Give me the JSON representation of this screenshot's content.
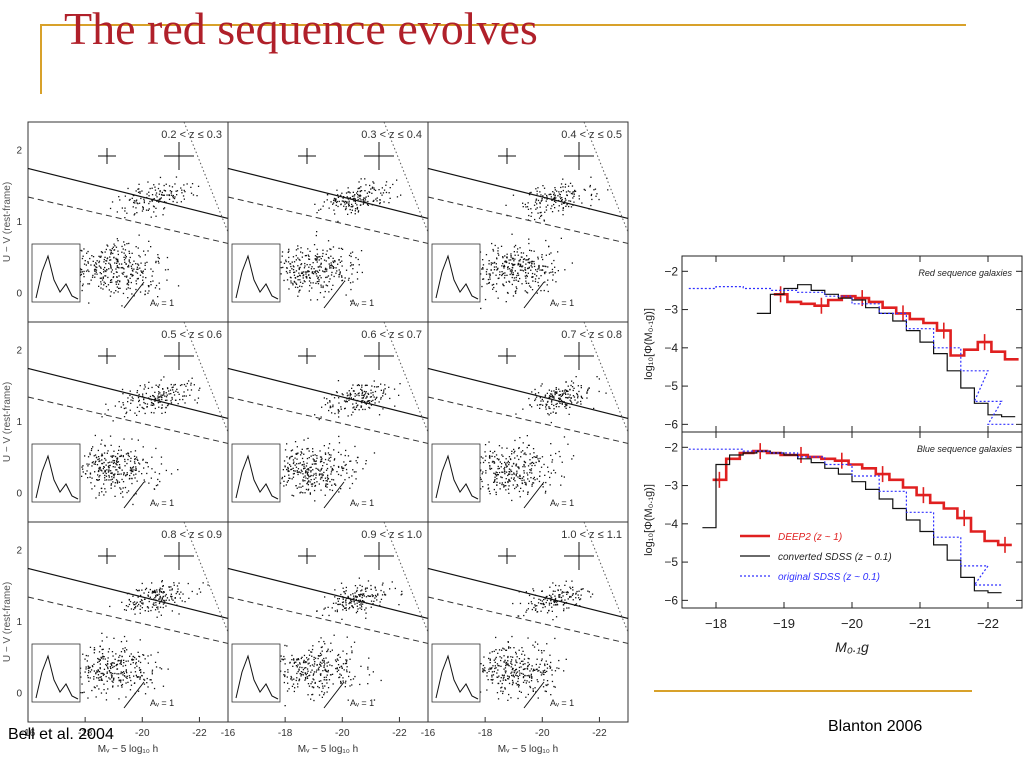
{
  "slide": {
    "title": "The red sequence evolves",
    "caption_left": "Bell et al. 2004",
    "caption_right": "Blanton 2006",
    "accent_color": "#d8a12a",
    "title_color": "#b0202a"
  },
  "chart_data": [
    {
      "type": "scatter",
      "description_panel_grid": "3x3",
      "panels": [
        {
          "label": "0.2 < z ≤ 0.3"
        },
        {
          "label": "0.3 < z ≤ 0.4"
        },
        {
          "label": "0.4 < z ≤ 0.5"
        },
        {
          "label": "0.5 < z ≤ 0.6"
        },
        {
          "label": "0.6 < z ≤ 0.7"
        },
        {
          "label": "0.7 < z ≤ 0.8"
        },
        {
          "label": "0.8 < z ≤ 0.9"
        },
        {
          "label": "0.9 < z ≤ 1.0"
        },
        {
          "label": "1.0 < z ≤ 1.1"
        }
      ],
      "xlabel": "Mᵥ − 5 log₁₀ h",
      "ylabel": "U − V (rest-frame)",
      "xticks": [
        "-22",
        "-20",
        "-18",
        "-16"
      ],
      "yticks": [
        "0",
        "1",
        "2"
      ],
      "xlim": [
        -16,
        -23
      ],
      "ylim": [
        -0.4,
        2.4
      ],
      "av_label": "Aᵥ = 1"
    },
    {
      "type": "line",
      "panels": [
        {
          "title": "Red sequence galaxies",
          "ylabel": "log₁₀[Φ(M₀.₁g)]",
          "yticks": [
            "-2",
            "-3",
            "-4",
            "-5",
            "-6"
          ],
          "ylim": [
            -6.2,
            -1.6
          ],
          "series": [
            {
              "name": "DEEP2 (z ~ 1)",
              "color": "#e02020",
              "x": [
                -18.95,
                -19.15,
                -19.35,
                -19.55,
                -19.75,
                -19.95,
                -20.15,
                -20.35,
                -20.55,
                -20.75,
                -20.95,
                -21.15,
                -21.35,
                -21.55,
                -21.75,
                -21.95,
                -22.15,
                -22.35
              ],
              "y": [
                -2.6,
                -2.8,
                -2.85,
                -2.9,
                -2.75,
                -2.65,
                -2.7,
                -2.8,
                -2.95,
                -3.1,
                -3.25,
                -3.35,
                -3.55,
                -4.2,
                -4.05,
                -3.85,
                -4.1,
                -4.3
              ]
            },
            {
              "name": "converted SDSS (z ~ 0.1)",
              "color": "#111111",
              "x": [
                -18.7,
                -18.9,
                -19.1,
                -19.3,
                -19.5,
                -19.7,
                -19.9,
                -20.1,
                -20.3,
                -20.5,
                -20.7,
                -20.9,
                -21.1,
                -21.3,
                -21.5,
                -21.7,
                -21.9,
                -22.1,
                -22.3
              ],
              "y": [
                -3.1,
                -2.6,
                -2.45,
                -2.35,
                -2.5,
                -2.6,
                -2.7,
                -2.75,
                -2.95,
                -3.1,
                -3.3,
                -3.55,
                -3.85,
                -4.15,
                -4.6,
                -5.05,
                -5.45,
                -5.75,
                -5.8
              ]
            },
            {
              "name": "original SDSS (z ~ 0.1)",
              "color": "#3030ff",
              "x": [
                -17.8,
                -18.2,
                -18.6,
                -19.0,
                -19.4,
                -19.8,
                -20.2,
                -20.6,
                -21.0,
                -21.4,
                -21.8,
                -22.0,
                -22.2
              ],
              "y": [
                -2.45,
                -2.4,
                -2.45,
                -2.5,
                -2.55,
                -2.65,
                -2.85,
                -3.1,
                -3.5,
                -4.0,
                -4.6,
                -5.4,
                -6.0
              ]
            }
          ]
        },
        {
          "title": "Blue sequence galaxies",
          "ylabel": "log₁₀[Φ(M₀.₁g)]",
          "yticks": [
            "-2",
            "-3",
            "-4",
            "-5",
            "-6"
          ],
          "ylim": [
            -6.2,
            -1.6
          ],
          "series": [
            {
              "name": "DEEP2 (z ~ 1)",
              "color": "#e02020",
              "x": [
                -18.05,
                -18.25,
                -18.45,
                -18.65,
                -18.85,
                -19.05,
                -19.25,
                -19.45,
                -19.65,
                -19.85,
                -20.05,
                -20.25,
                -20.45,
                -20.65,
                -20.85,
                -21.05,
                -21.25,
                -21.45,
                -21.65,
                -21.85,
                -22.05,
                -22.25
              ],
              "y": [
                -2.85,
                -2.3,
                -2.15,
                -2.1,
                -2.15,
                -2.2,
                -2.2,
                -2.25,
                -2.3,
                -2.35,
                -2.45,
                -2.55,
                -2.7,
                -2.85,
                -3.05,
                -3.25,
                -3.45,
                -3.6,
                -3.85,
                -4.2,
                -4.45,
                -4.55
              ]
            },
            {
              "name": "converted SDSS (z ~ 0.1)",
              "color": "#111111",
              "x": [
                -17.9,
                -18.1,
                -18.3,
                -18.5,
                -18.7,
                -18.9,
                -19.1,
                -19.3,
                -19.5,
                -19.7,
                -19.9,
                -20.1,
                -20.3,
                -20.5,
                -20.7,
                -20.9,
                -21.1,
                -21.3,
                -21.5,
                -21.7,
                -21.9,
                -22.1
              ],
              "y": [
                -4.1,
                -2.45,
                -2.2,
                -2.15,
                -2.1,
                -2.15,
                -2.2,
                -2.3,
                -2.4,
                -2.55,
                -2.7,
                -2.9,
                -3.1,
                -3.35,
                -3.6,
                -3.9,
                -4.2,
                -4.55,
                -4.95,
                -5.4,
                -5.75,
                -5.8
              ]
            },
            {
              "name": "original SDSS (z ~ 0.1)",
              "color": "#3030ff",
              "x": [
                -17.8,
                -18.2,
                -18.6,
                -19.0,
                -19.4,
                -19.8,
                -20.2,
                -20.6,
                -21.0,
                -21.4,
                -21.8,
                -22.0
              ],
              "y": [
                -2.05,
                -2.05,
                -2.1,
                -2.15,
                -2.25,
                -2.45,
                -2.75,
                -3.15,
                -3.7,
                -4.35,
                -5.1,
                -5.6
              ]
            }
          ]
        }
      ],
      "xlabel": "M₀.₁g",
      "xticks": [
        "-18",
        "-19",
        "-20",
        "-21",
        "-22"
      ],
      "xlim": [
        -17.5,
        -22.5
      ],
      "legend": [
        {
          "label": "DEEP2 (z ~ 1)",
          "color": "#e02020"
        },
        {
          "label": "converted SDSS (z ~ 0.1)",
          "color": "#111111"
        },
        {
          "label": "original SDSS (z ~ 0.1)",
          "color": "#3030ff"
        }
      ]
    }
  ]
}
